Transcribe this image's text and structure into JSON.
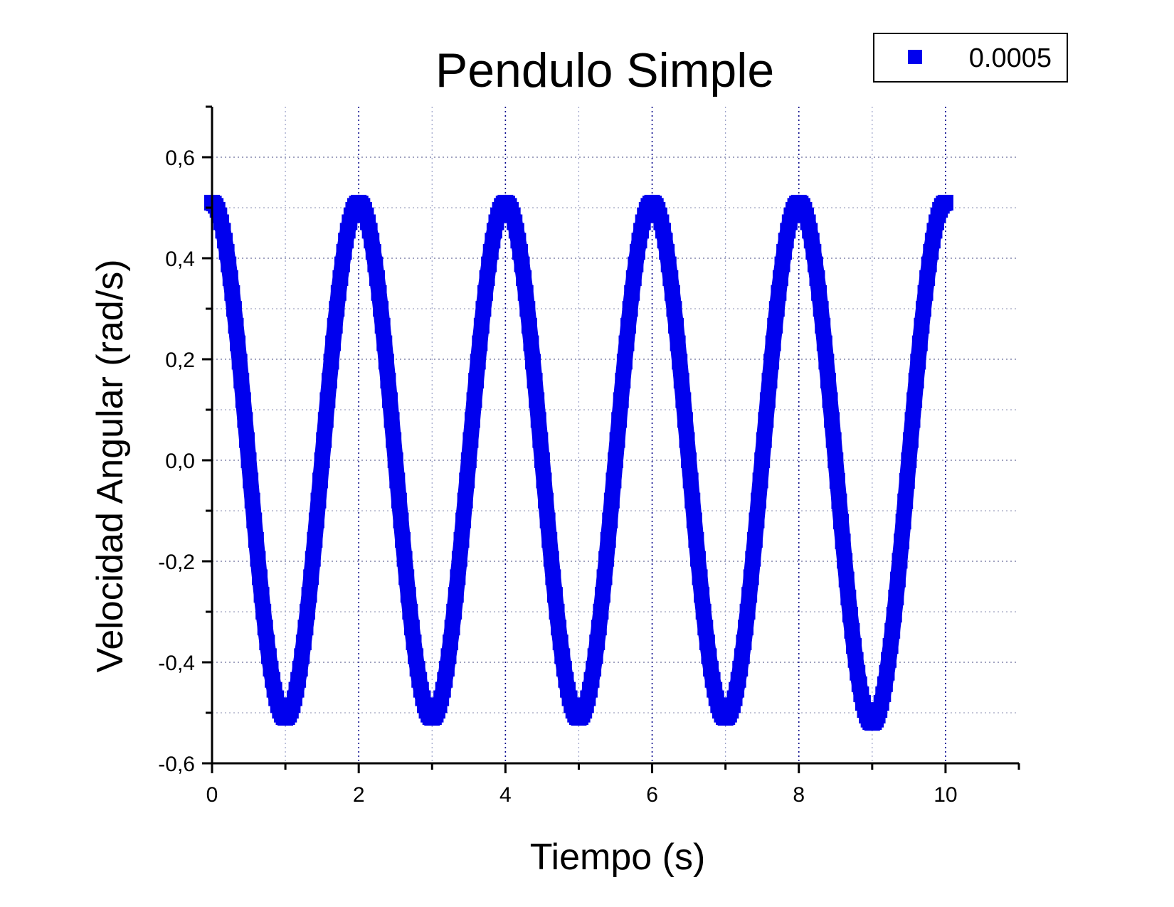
{
  "chart_data": {
    "type": "scatter",
    "title": "Pendulo Simple",
    "xlabel": "Tiempo (s)",
    "ylabel": "Velocidad Angular (rad/s)",
    "xlim": [
      0,
      11
    ],
    "ylim": [
      -0.6,
      0.7
    ],
    "x_ticks": [
      0,
      2,
      4,
      6,
      8,
      10
    ],
    "x_tick_labels": [
      "0",
      "2",
      "4",
      "6",
      "8",
      "10"
    ],
    "y_ticks": [
      -0.6,
      -0.4,
      -0.2,
      0.0,
      0.2,
      0.4,
      0.6
    ],
    "y_tick_labels": [
      "-0,6",
      "-0,4",
      "-0,2",
      "0,0",
      "0,2",
      "0,4",
      "0,6"
    ],
    "grid": true,
    "legend_position": "top-right",
    "series": [
      {
        "name": "0.0005",
        "color": "#0000ee",
        "marker": "square",
        "x": [
          0.0,
          0.5,
          1.0,
          1.5,
          2.0,
          2.5,
          3.0,
          3.5,
          4.0,
          4.5,
          5.0,
          5.5,
          6.0,
          6.5,
          7.0,
          7.5,
          8.0,
          8.5,
          9.0,
          9.5,
          10.0
        ],
        "y": [
          0.51,
          0.0,
          -0.51,
          0.0,
          0.51,
          0.0,
          -0.51,
          0.0,
          0.51,
          0.0,
          -0.51,
          0.0,
          0.51,
          0.0,
          -0.51,
          0.0,
          0.51,
          0.0,
          -0.52,
          0.0,
          0.51
        ]
      }
    ]
  }
}
